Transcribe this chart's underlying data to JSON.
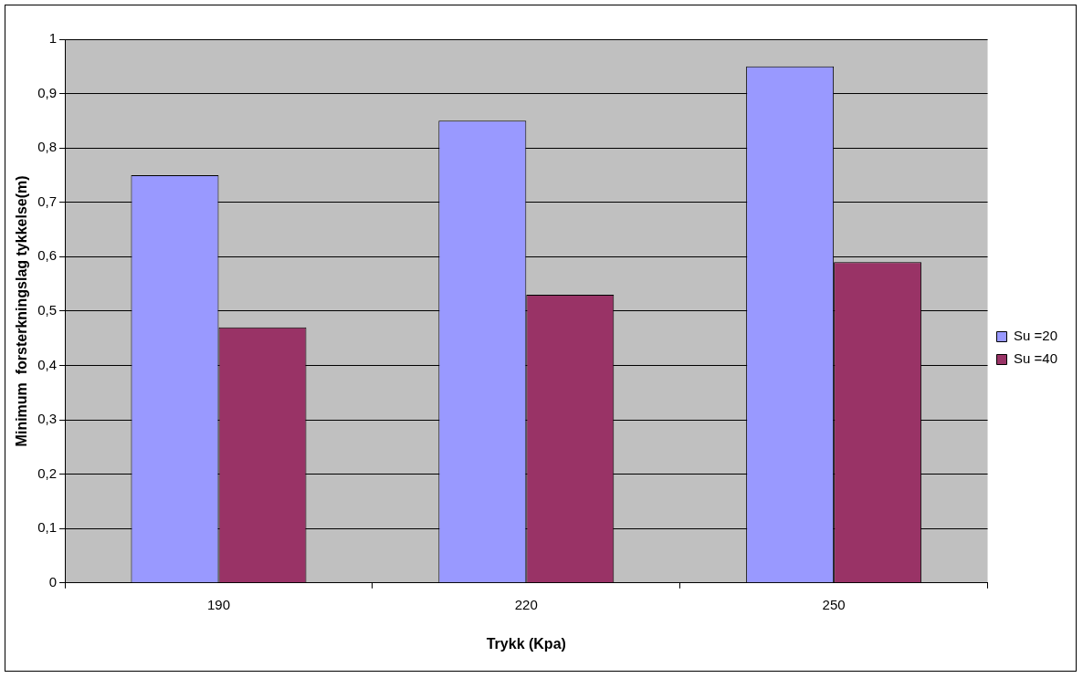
{
  "chart_data": {
    "type": "bar",
    "xlabel": "Trykk (Kpa)",
    "ylabel": "Minimum  forsterkningslag tykkelse(m)",
    "categories": [
      "190",
      "220",
      "250"
    ],
    "series": [
      {
        "name": "Su =20",
        "color": "#9999ff",
        "values": [
          0.75,
          0.85,
          0.95
        ]
      },
      {
        "name": "Su =40",
        "color": "#993366",
        "values": [
          0.47,
          0.53,
          0.59
        ]
      }
    ],
    "ylim": [
      0,
      1
    ],
    "yticks": [
      0,
      {
        "value": 0.1,
        "label": "0,1"
      },
      {
        "value": 0.2,
        "label": "0,2"
      },
      {
        "value": 0.3,
        "label": "0,3"
      },
      {
        "value": 0.4,
        "label": "0,4"
      },
      {
        "value": 0.5,
        "label": "0,5"
      },
      {
        "value": 0.6,
        "label": "0,6"
      },
      {
        "value": 0.7,
        "label": "0,7"
      },
      {
        "value": 0.8,
        "label": "0,8"
      },
      {
        "value": 0.9,
        "label": "0,9"
      },
      1
    ],
    "grid": "y",
    "legend": "right"
  }
}
